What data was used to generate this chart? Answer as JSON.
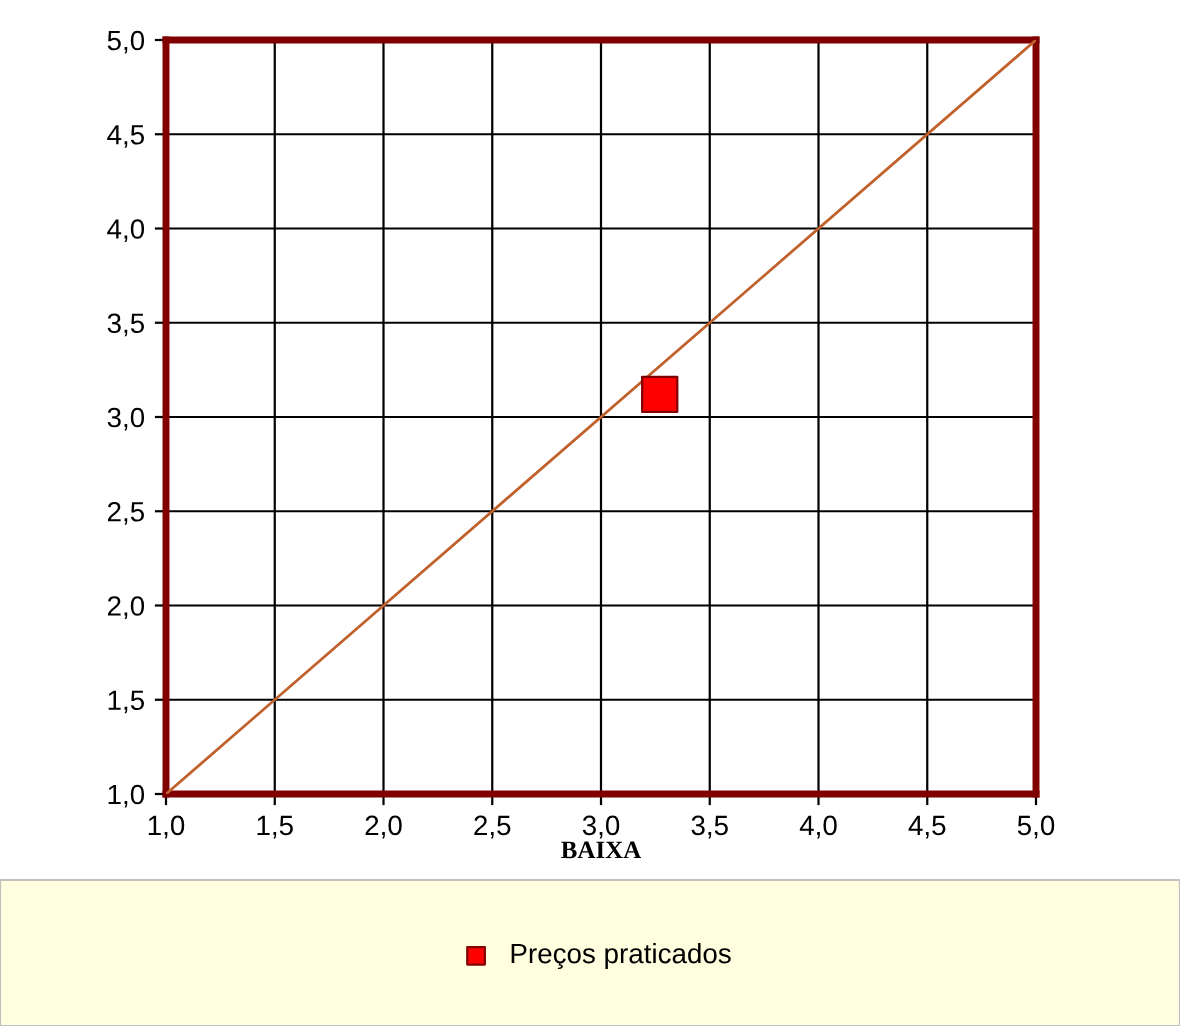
{
  "chart_data": {
    "type": "scatter",
    "xlabel": "BAIXA",
    "series": [
      {
        "type": "line",
        "color": "#c0602a",
        "x": [
          1.0,
          5.0
        ],
        "values": [
          1.0,
          5.0
        ],
        "marker": "none"
      },
      {
        "name": "Preços praticados",
        "color": "#ff0000",
        "x": [
          3.27
        ],
        "values": [
          3.12
        ],
        "marker": "square"
      }
    ],
    "xlim": [
      1.0,
      5.0
    ],
    "ylim": [
      1.0,
      5.0
    ],
    "xticks": [
      {
        "value": 1.0,
        "label": "1,0"
      },
      {
        "value": 1.5,
        "label": "1,5"
      },
      {
        "value": 2.0,
        "label": "2,0"
      },
      {
        "value": 2.5,
        "label": "2,5"
      },
      {
        "value": 3.0,
        "label": "3,0"
      },
      {
        "value": 3.5,
        "label": "3,5"
      },
      {
        "value": 4.0,
        "label": "4,0"
      },
      {
        "value": 4.5,
        "label": "4,5"
      },
      {
        "value": 5.0,
        "label": "5,0"
      }
    ],
    "yticks": [
      {
        "value": 1.0,
        "label": "1,0"
      },
      {
        "value": 1.5,
        "label": "1,5"
      },
      {
        "value": 2.0,
        "label": "2,0"
      },
      {
        "value": 2.5,
        "label": "2,5"
      },
      {
        "value": 3.0,
        "label": "3,0"
      },
      {
        "value": 3.5,
        "label": "3,5"
      },
      {
        "value": 4.0,
        "label": "4,0"
      },
      {
        "value": 4.5,
        "label": "4,5"
      },
      {
        "value": 5.0,
        "label": "5,0"
      }
    ],
    "grid": true,
    "legend": "bottom"
  }
}
